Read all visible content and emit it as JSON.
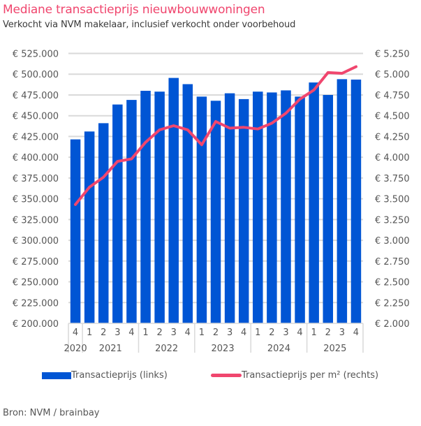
{
  "header": {
    "title": "Mediane transactieprijs nieuwbouwwoningen",
    "subtitle": "Verkocht via NVM makelaar, inclusief verkocht onder voorbehoud"
  },
  "footer": {
    "source": "Bron: NVM / brainbay"
  },
  "colors": {
    "bar": "#0055d4",
    "line": "#f0466e",
    "grid": "#d9d9d9",
    "title": "#f0466e"
  },
  "chart_data": {
    "type": "bar",
    "title": "Mediane transactieprijs nieuwbouwwoningen",
    "subtitle": "Verkocht via NVM makelaar, inclusief verkocht onder voorbehoud",
    "categories": [
      "4",
      "1",
      "2",
      "3",
      "4",
      "1",
      "2",
      "3",
      "4",
      "1",
      "2",
      "3",
      "4",
      "1",
      "2",
      "3",
      "4",
      "1",
      "2",
      "3",
      "4"
    ],
    "year_groups": [
      {
        "label": "2020",
        "count": 1
      },
      {
        "label": "2021",
        "count": 4
      },
      {
        "label": "2022",
        "count": 4
      },
      {
        "label": "2023",
        "count": 4
      },
      {
        "label": "2024",
        "count": 4
      },
      {
        "label": "2025",
        "count": 4
      }
    ],
    "series": [
      {
        "name": "Transactieprijs (links)",
        "type": "bar",
        "axis": "left",
        "values": [
          421500,
          431000,
          441000,
          463500,
          469000,
          480000,
          479000,
          495500,
          488000,
          473000,
          468000,
          477000,
          470000,
          479000,
          478000,
          480500,
          473000,
          490000,
          475000,
          494000,
          493500
        ]
      },
      {
        "name": "Transactieprijs per m² (rechts)",
        "type": "line",
        "axis": "right",
        "values": [
          3430,
          3640,
          3760,
          3950,
          3980,
          4180,
          4330,
          4380,
          4330,
          4150,
          4430,
          4350,
          4360,
          4340,
          4410,
          4530,
          4700,
          4810,
          5020,
          5010,
          5090
        ]
      }
    ],
    "left_axis": {
      "range": [
        200000,
        525000
      ],
      "ticks": [
        "€ 525.000",
        "€ 500.000",
        "€ 475.000",
        "€ 450.000",
        "€ 425.000",
        "€ 400.000",
        "€ 375.000",
        "€ 350.000",
        "€ 325.000",
        "€ 300.000",
        "€ 275.000",
        "€ 250.000",
        "€ 225.000",
        "€ 200.000"
      ]
    },
    "right_axis": {
      "range": [
        2000,
        5250
      ],
      "ticks": [
        "€ 5.250",
        "€ 5.000",
        "€ 4.750",
        "€ 4.500",
        "€ 4.250",
        "€ 4.000",
        "€ 3.750",
        "€ 3.500",
        "€ 3.250",
        "€ 3.000",
        "€ 2.750",
        "€ 2.500",
        "€ 2.250",
        "€ 2.000"
      ]
    },
    "xlabel": "",
    "ylabel": "",
    "grid": true,
    "legend_position": "bottom"
  }
}
